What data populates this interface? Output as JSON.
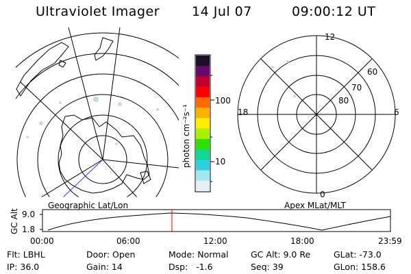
{
  "header": {
    "instrument": "Ultraviolet Imager",
    "date": "14 Jul 07",
    "time": "09:00:12 UT"
  },
  "colorbar": {
    "unit_label": "photon cm⁻²s⁻¹",
    "ticks": [
      "100",
      "10"
    ],
    "colors": [
      "#1a1028",
      "#6a0a6a",
      "#c00030",
      "#ff0000",
      "#ff6a00",
      "#ffb000",
      "#ffee00",
      "#aaf000",
      "#2ee000",
      "#10d890",
      "#30d0e0",
      "#a0e8f0",
      "#e6f0f4"
    ]
  },
  "left_map": {
    "label": "Geographic Lat/Lon",
    "aurora_color": "#c8dcd0"
  },
  "right_map": {
    "label": "Apex MLat/MLT",
    "mlt_labels": {
      "top": "12",
      "right": "6",
      "bottom": "0",
      "left": "18"
    },
    "lat_labels": [
      "60",
      "70",
      "80"
    ]
  },
  "altitude_plot": {
    "ylabel": "GC Alt",
    "yticks": [
      "9.0",
      "1.8"
    ],
    "xticks": [
      "00:00",
      "06:00",
      "12:00",
      "18:00",
      "23:59"
    ],
    "marker_color": "#e00000",
    "marker_time": "09:00"
  },
  "info": {
    "row1": {
      "flt": "Flt: LBHL",
      "door": "Door: Open",
      "mode": "Mode: Normal",
      "gcalt": "GC Alt: 9.0 Re",
      "glat": "GLat: -73.0"
    },
    "row2": {
      "ip": "IP: 36.0",
      "gain": "Gain: 14",
      "dsp": "Dsp:   -1.6",
      "seq": "Seq: 39",
      "glon": "GLon: 158.6"
    }
  }
}
